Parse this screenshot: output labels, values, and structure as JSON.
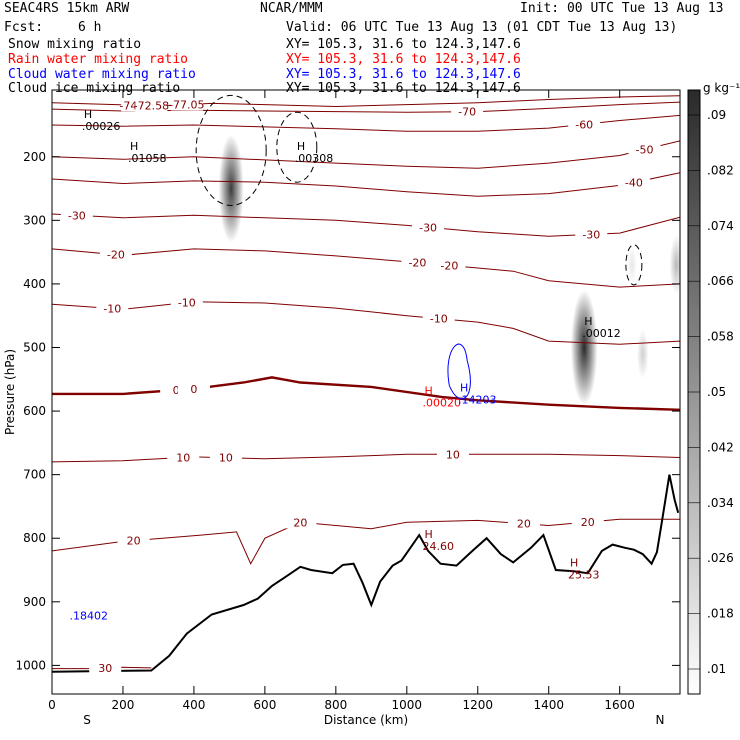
{
  "header": {
    "model": "SEAC4RS 15km ARW",
    "org": "NCAR/MMM",
    "init": "Init: 00 UTC Tue 13 Aug 13",
    "fcst_label": "Fcst:",
    "fcst_value": "6 h",
    "valid": "Valid: 06 UTC Tue 13 Aug 13 (01 CDT Tue 13 Aug 13)"
  },
  "fields": [
    {
      "name": "Snow mixing ratio",
      "xy": "XY= 105.3, 31.6 to 124.3,147.6",
      "color": "#000000"
    },
    {
      "name": "Rain water mixing ratio",
      "xy": "XY= 105.3, 31.6 to 124.3,147.6",
      "color": "#ff0000"
    },
    {
      "name": "Cloud water mixing ratio",
      "xy": "XY= 105.3, 31.6 to 124.3,147.6",
      "color": "#0000ff"
    },
    {
      "name": "Cloud ice mixing ratio",
      "xy": "XY= 105.3, 31.6 to 124.3,147.6",
      "color": "#000000"
    }
  ],
  "chart_data": {
    "type": "heatmap",
    "xlabel": "Distance (km)",
    "ylabel": "Pressure (hPa)",
    "xlim": [
      0,
      1770
    ],
    "ylim": [
      1045,
      95
    ],
    "x_ticks": [
      "0",
      "200",
      "400",
      "600",
      "800",
      "1000",
      "1200",
      "1400",
      "1600"
    ],
    "y_ticks": [
      "200",
      "300",
      "400",
      "500",
      "600",
      "700",
      "800",
      "900",
      "1000"
    ],
    "end_labels": {
      "left": "S",
      "right": "N"
    },
    "colorbar": {
      "unit": "g kg⁻¹",
      "levels": [
        ".01",
        ".018",
        ".026",
        ".034",
        ".042",
        ".05",
        ".058",
        ".066",
        ".074",
        ".082",
        ".09"
      ]
    },
    "temperature_isotherm_labels": [
      "-77.05",
      "-74.64",
      "-72.58",
      "-70",
      "-60",
      "-50",
      "-40",
      "-30",
      "-30",
      "-30",
      "-20",
      "-20",
      "-20",
      "-10",
      "-10",
      "-10",
      "0",
      "0",
      "10",
      "10",
      "10",
      "20",
      "20",
      "20",
      "20",
      "30"
    ],
    "extrema_labels": [
      {
        "mark": "H",
        "value": ".00026",
        "color": "#000000"
      },
      {
        "mark": "H",
        "value": ".01058",
        "color": "#000000"
      },
      {
        "mark": "H",
        "value": ".00308",
        "color": "#000000"
      },
      {
        "mark": "H",
        "value": ".00012",
        "color": "#000000"
      },
      {
        "mark": "H",
        "value": "24.60",
        "color": "#800000"
      },
      {
        "mark": "H",
        "value": "25.53",
        "color": "#800000"
      },
      {
        "mark": "H",
        "value": ".00020",
        "color": "#ff0000"
      },
      {
        "mark": "H",
        "value": ".14203",
        "color": "#0000ff"
      },
      {
        "mark": "",
        "value": ".18402",
        "color": "#0000ff"
      }
    ],
    "snow_max": [
      {
        "x": 505,
        "p": 250,
        "value": 0.082
      },
      {
        "x": 1500,
        "p": 500,
        "value": 0.09
      },
      {
        "x": 1665,
        "p": 510,
        "value": 0.02
      },
      {
        "x": 1635,
        "p": 370,
        "value": 0.01
      },
      {
        "x": 1760,
        "p": 370,
        "value": 0.03
      }
    ],
    "terrain": [
      {
        "x": 0,
        "p": 1010
      },
      {
        "x": 280,
        "p": 1008
      },
      {
        "x": 330,
        "p": 985
      },
      {
        "x": 380,
        "p": 950
      },
      {
        "x": 450,
        "p": 920
      },
      {
        "x": 540,
        "p": 905
      },
      {
        "x": 580,
        "p": 895
      },
      {
        "x": 620,
        "p": 875
      },
      {
        "x": 660,
        "p": 860
      },
      {
        "x": 700,
        "p": 845
      },
      {
        "x": 730,
        "p": 850
      },
      {
        "x": 790,
        "p": 855
      },
      {
        "x": 820,
        "p": 842
      },
      {
        "x": 850,
        "p": 840
      },
      {
        "x": 875,
        "p": 870
      },
      {
        "x": 900,
        "p": 905
      },
      {
        "x": 925,
        "p": 868
      },
      {
        "x": 960,
        "p": 843
      },
      {
        "x": 985,
        "p": 835
      },
      {
        "x": 1010,
        "p": 815
      },
      {
        "x": 1035,
        "p": 795
      },
      {
        "x": 1060,
        "p": 820
      },
      {
        "x": 1095,
        "p": 840
      },
      {
        "x": 1140,
        "p": 843
      },
      {
        "x": 1185,
        "p": 820
      },
      {
        "x": 1225,
        "p": 800
      },
      {
        "x": 1265,
        "p": 825
      },
      {
        "x": 1300,
        "p": 838
      },
      {
        "x": 1350,
        "p": 815
      },
      {
        "x": 1385,
        "p": 795
      },
      {
        "x": 1420,
        "p": 850
      },
      {
        "x": 1470,
        "p": 852
      },
      {
        "x": 1510,
        "p": 855
      },
      {
        "x": 1550,
        "p": 820
      },
      {
        "x": 1580,
        "p": 810
      },
      {
        "x": 1615,
        "p": 815
      },
      {
        "x": 1640,
        "p": 818
      },
      {
        "x": 1665,
        "p": 825
      },
      {
        "x": 1690,
        "p": 840
      },
      {
        "x": 1705,
        "p": 822
      },
      {
        "x": 1720,
        "p": 770
      },
      {
        "x": 1740,
        "p": 700
      },
      {
        "x": 1755,
        "p": 740
      },
      {
        "x": 1765,
        "p": 760
      }
    ],
    "isotherms": [
      {
        "label": "-77.05",
        "bold": false,
        "pts": [
          [
            0,
            115
          ],
          [
            180,
            118
          ],
          [
            300,
            120
          ],
          [
            450,
            116
          ],
          [
            600,
            118
          ],
          [
            800,
            121
          ],
          [
            1000,
            118
          ],
          [
            1200,
            115
          ],
          [
            1400,
            110
          ],
          [
            1600,
            106
          ],
          [
            1770,
            104
          ]
        ]
      },
      {
        "label": "-70",
        "bold": false,
        "pts": [
          [
            0,
            125
          ],
          [
            200,
            128
          ],
          [
            400,
            127
          ],
          [
            600,
            128
          ],
          [
            800,
            129
          ],
          [
            1000,
            130
          ],
          [
            1200,
            129
          ],
          [
            1400,
            124
          ],
          [
            1600,
            118
          ],
          [
            1770,
            114
          ]
        ]
      },
      {
        "label": "-60",
        "bold": false,
        "pts": [
          [
            0,
            150
          ],
          [
            200,
            152
          ],
          [
            400,
            150
          ],
          [
            600,
            153
          ],
          [
            800,
            156
          ],
          [
            1000,
            160
          ],
          [
            1200,
            160
          ],
          [
            1400,
            155
          ],
          [
            1600,
            143
          ],
          [
            1770,
            135
          ]
        ]
      },
      {
        "label": "-50",
        "bold": false,
        "pts": [
          [
            0,
            200
          ],
          [
            200,
            204
          ],
          [
            400,
            200
          ],
          [
            600,
            205
          ],
          [
            800,
            210
          ],
          [
            1000,
            215
          ],
          [
            1200,
            218
          ],
          [
            1400,
            210
          ],
          [
            1600,
            198
          ],
          [
            1770,
            175
          ]
        ]
      },
      {
        "label": "-40",
        "bold": false,
        "pts": [
          [
            0,
            235
          ],
          [
            200,
            242
          ],
          [
            400,
            238
          ],
          [
            600,
            240
          ],
          [
            800,
            246
          ],
          [
            1000,
            255
          ],
          [
            1200,
            262
          ],
          [
            1400,
            258
          ],
          [
            1600,
            245
          ],
          [
            1770,
            225
          ]
        ]
      },
      {
        "label": "-30",
        "bold": false,
        "pts": [
          [
            0,
            290
          ],
          [
            200,
            296
          ],
          [
            400,
            292
          ],
          [
            600,
            296
          ],
          [
            800,
            300
          ],
          [
            1000,
            308
          ],
          [
            1200,
            318
          ],
          [
            1400,
            325
          ],
          [
            1600,
            320
          ],
          [
            1770,
            295
          ]
        ]
      },
      {
        "label": "-20",
        "bold": false,
        "pts": [
          [
            0,
            345
          ],
          [
            200,
            355
          ],
          [
            400,
            345
          ],
          [
            600,
            348
          ],
          [
            800,
            356
          ],
          [
            1000,
            365
          ],
          [
            1200,
            375
          ],
          [
            1300,
            380
          ],
          [
            1400,
            395
          ],
          [
            1600,
            405
          ],
          [
            1770,
            400
          ]
        ]
      },
      {
        "label": "-10",
        "bold": false,
        "pts": [
          [
            0,
            432
          ],
          [
            200,
            440
          ],
          [
            400,
            428
          ],
          [
            600,
            430
          ],
          [
            800,
            438
          ],
          [
            1000,
            450
          ],
          [
            1200,
            460
          ],
          [
            1300,
            470
          ],
          [
            1400,
            490
          ],
          [
            1600,
            495
          ],
          [
            1770,
            490
          ]
        ]
      },
      {
        "label": "0",
        "bold": true,
        "pts": [
          [
            0,
            573
          ],
          [
            200,
            573
          ],
          [
            400,
            565
          ],
          [
            540,
            555
          ],
          [
            620,
            547
          ],
          [
            700,
            555
          ],
          [
            900,
            562
          ],
          [
            1100,
            578
          ],
          [
            1200,
            583
          ],
          [
            1400,
            590
          ],
          [
            1600,
            595
          ],
          [
            1770,
            598
          ]
        ]
      },
      {
        "label": "10",
        "bold": false,
        "pts": [
          [
            0,
            680
          ],
          [
            200,
            678
          ],
          [
            400,
            672
          ],
          [
            600,
            675
          ],
          [
            800,
            672
          ],
          [
            1000,
            668
          ],
          [
            1200,
            668
          ],
          [
            1400,
            668
          ],
          [
            1600,
            670
          ],
          [
            1770,
            673
          ]
        ]
      },
      {
        "label": "20",
        "bold": false,
        "pts": [
          [
            0,
            820
          ],
          [
            200,
            805
          ],
          [
            420,
            795
          ],
          [
            520,
            790
          ],
          [
            560,
            840
          ],
          [
            600,
            800
          ],
          [
            700,
            775
          ],
          [
            900,
            785
          ],
          [
            1000,
            775
          ],
          [
            1200,
            772
          ],
          [
            1400,
            780
          ],
          [
            1600,
            770
          ],
          [
            1770,
            770
          ]
        ]
      },
      {
        "label": "30",
        "bold": false,
        "pts": [
          [
            0,
            1005
          ],
          [
            100,
            1005
          ],
          [
            200,
            1003
          ],
          [
            280,
            1004
          ]
        ]
      }
    ]
  }
}
